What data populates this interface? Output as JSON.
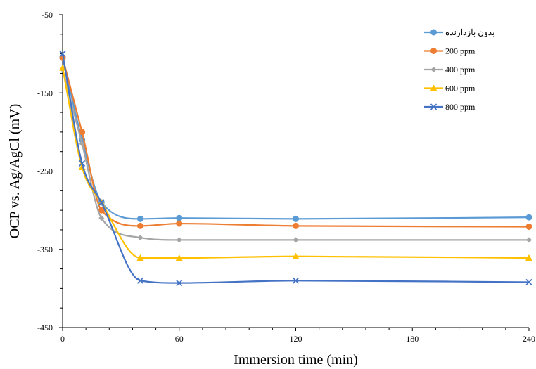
{
  "chart_data": {
    "type": "line",
    "xlabel": "Immersion time (min)",
    "ylabel": "OCP vs. Ag/AgCl (mV)",
    "xlim": [
      0,
      240
    ],
    "ylim": [
      -450,
      -50
    ],
    "x_ticks": [
      0,
      60,
      120,
      180,
      240
    ],
    "y_ticks": [
      -50,
      -150,
      -250,
      -350,
      -450
    ],
    "grid": false,
    "legend_position": "top-right",
    "x": [
      0,
      10,
      20,
      40,
      60,
      120,
      240
    ],
    "series": [
      {
        "name": "بدون بازدارنده",
        "color": "#5B9BD5",
        "marker": "circle",
        "values": [
          -105,
          -210,
          -290,
          -311,
          -310,
          -311,
          -309
        ]
      },
      {
        "name": "200 ppm",
        "color": "#ED7D31",
        "marker": "circle",
        "values": [
          -105,
          -200,
          -300,
          -320,
          -317,
          -320,
          -321
        ]
      },
      {
        "name": "400 ppm",
        "color": "#A5A5A5",
        "marker": "diamond",
        "values": [
          -120,
          -215,
          -310,
          -335,
          -338,
          -338,
          -338
        ]
      },
      {
        "name": "600 ppm",
        "color": "#FFC000",
        "marker": "triangle",
        "values": [
          -118,
          -245,
          -290,
          -361,
          -361,
          -359,
          -361
        ]
      },
      {
        "name": "800 ppm",
        "color": "#4472C4",
        "marker": "x",
        "values": [
          -100,
          -240,
          -290,
          -390,
          -393,
          -390,
          -392
        ]
      }
    ]
  }
}
